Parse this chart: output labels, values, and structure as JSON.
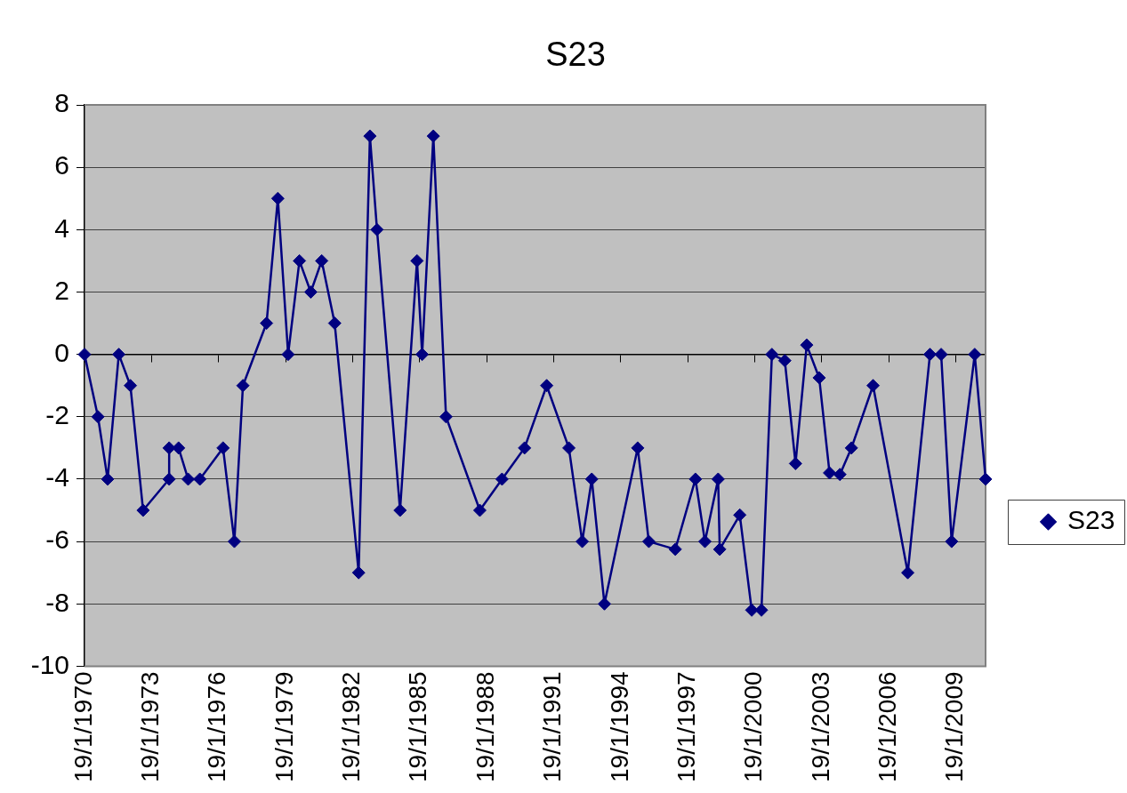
{
  "chart_data": {
    "type": "line",
    "title": "S23",
    "xlim": [
      "1970-01-19",
      "2010-05-20"
    ],
    "xticks": [
      {
        "value": "1970-01-19",
        "label": "19/1/1970"
      },
      {
        "value": "1973-01-19",
        "label": "19/1/1973"
      },
      {
        "value": "1976-01-19",
        "label": "19/1/1976"
      },
      {
        "value": "1979-01-19",
        "label": "19/1/1979"
      },
      {
        "value": "1982-01-19",
        "label": "19/1/1982"
      },
      {
        "value": "1985-01-19",
        "label": "19/1/1985"
      },
      {
        "value": "1988-01-19",
        "label": "19/1/1988"
      },
      {
        "value": "1991-01-19",
        "label": "19/1/1991"
      },
      {
        "value": "1994-01-19",
        "label": "19/1/1994"
      },
      {
        "value": "1997-01-19",
        "label": "19/1/1997"
      },
      {
        "value": "2000-01-19",
        "label": "19/1/2000"
      },
      {
        "value": "2003-01-19",
        "label": "19/1/2003"
      },
      {
        "value": "2006-01-19",
        "label": "19/1/2006"
      },
      {
        "value": "2009-01-19",
        "label": "19/1/2009"
      }
    ],
    "ylim": [
      -10,
      8
    ],
    "yticks": [
      -10,
      -8,
      -6,
      -4,
      -2,
      0,
      2,
      4,
      6,
      8
    ],
    "grid": "y",
    "legend": "right",
    "marker": "diamond",
    "line_style": "solid",
    "x": [
      "1970-01-19",
      "1970-08-27",
      "1971-02-01",
      "1971-08-03",
      "1972-02-08",
      "1972-09-03",
      "1973-11-03",
      "1973-11-03",
      "1974-04-06",
      "1974-09-09",
      "1975-03-20",
      "1976-04-02",
      "1976-10-04",
      "1977-02-21",
      "1978-03-14",
      "1978-09-15",
      "1979-03-02",
      "1979-09-03",
      "1980-03-06",
      "1980-09-01",
      "1981-04-01",
      "1982-04-28",
      "1982-10-29",
      "1983-02-22",
      "1984-03-05",
      "1984-12-07",
      "1985-03-01",
      "1985-08-31",
      "1986-03-26",
      "1987-09-30",
      "1988-09-27",
      "1989-09-30",
      "1990-09-27",
      "1991-09-25",
      "1992-04-30",
      "1992-10-03",
      "1993-04-28",
      "1994-10-24",
      "1995-04-24",
      "1996-06-30",
      "1997-05-25",
      "1997-10-27",
      "1998-05-31",
      "1998-06-26",
      "1999-05-20",
      "1999-12-01",
      "2000-05-08",
      "2000-10-26",
      "2001-05-25",
      "2001-11-16",
      "2002-05-18",
      "2002-12-08",
      "2003-05-26",
      "2003-11-12",
      "2004-05-18",
      "2005-05-07",
      "2006-11-25",
      "2007-11-23",
      "2008-05-24",
      "2008-11-11",
      "2009-11-24",
      "2010-05-20"
    ],
    "series": [
      {
        "name": "S23",
        "color": "#000080",
        "values": [
          0,
          -2,
          -4,
          0,
          -1,
          -5,
          -4,
          -3,
          -3,
          -4,
          -4,
          -3,
          -6,
          -1,
          1,
          5,
          0,
          3,
          2,
          3,
          1,
          -7,
          7,
          4,
          -5,
          3,
          0,
          7,
          -2,
          -5,
          -4,
          -3,
          -1,
          -3,
          -6,
          -4,
          -8,
          -3,
          -6,
          -6.25,
          -4,
          -6,
          -4,
          -6.25,
          -5.15,
          -8.2,
          -8.2,
          0,
          -0.2,
          -3.5,
          0.3,
          -0.75,
          -3.8,
          -3.85,
          -3,
          -1,
          -7,
          0,
          0,
          -6,
          0,
          -4
        ]
      }
    ]
  }
}
